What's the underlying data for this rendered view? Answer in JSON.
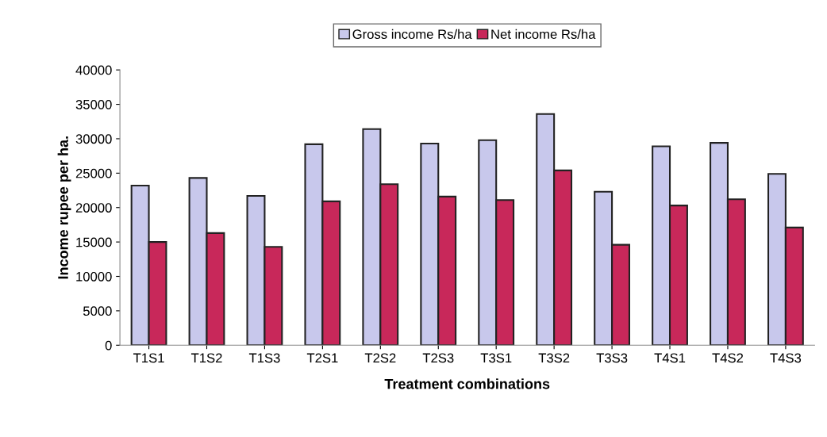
{
  "chart_data": {
    "type": "bar",
    "xlabel": "Treatment combinations",
    "ylabel": "Income rupee per ha.",
    "categories": [
      "T1S1",
      "T1S2",
      "T1S3",
      "T2S1",
      "T2S2",
      "T2S3",
      "T3S1",
      "T3S2",
      "T3S3",
      "T4S1",
      "T4S2",
      "T4S3"
    ],
    "series": [
      {
        "name": "Gross income Rs/ha",
        "color": "#c8c8ec",
        "values": [
          23200,
          24300,
          21700,
          29200,
          31400,
          29300,
          29800,
          33600,
          22300,
          28900,
          29400,
          24900
        ]
      },
      {
        "name": "Net income Rs/ha",
        "color": "#c8285a",
        "values": [
          15000,
          16300,
          14300,
          20900,
          23400,
          21600,
          21100,
          25400,
          14600,
          20300,
          21200,
          17100
        ]
      }
    ],
    "ylim": [
      0,
      40000
    ],
    "yticks": [
      0,
      5000,
      10000,
      15000,
      20000,
      25000,
      30000,
      35000,
      40000
    ],
    "grid": false,
    "legend": "top"
  }
}
